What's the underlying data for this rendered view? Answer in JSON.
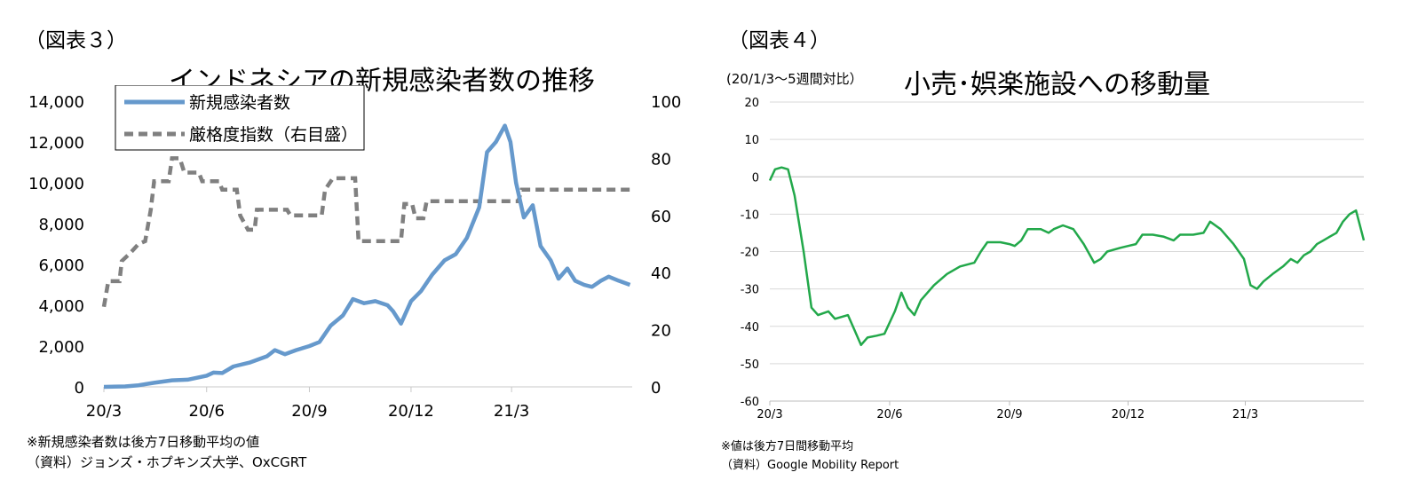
{
  "figure3": {
    "label": "（図表３）",
    "title": "インドネシアの新規感染者数の推移",
    "notes": [
      "※新規感染者数は後方7日移動平均の値",
      "（資料）ジョンズ・ホプキンズ大学、OxCGRT"
    ],
    "chart_data": {
      "type": "line",
      "title": "インドネシアの新規感染者数の推移",
      "x_ticks": [
        "20/3",
        "20/6",
        "20/9",
        "20/12",
        "21/3"
      ],
      "x_range": [
        "2020-03-01",
        "2021-06-17"
      ],
      "y_left": {
        "range": [
          0,
          14000
        ],
        "ticks": [
          "0",
          "2,000",
          "4,000",
          "6,000",
          "8,000",
          "10,000",
          "12,000",
          "14,000"
        ]
      },
      "y_right": {
        "range": [
          0,
          100
        ],
        "ticks": [
          "0",
          "20",
          "40",
          "60",
          "80",
          "100"
        ]
      },
      "legend_position": "top-left",
      "grid": false,
      "series": [
        {
          "name": "新規感染者数",
          "axis": "left",
          "color": "#6699cc",
          "style": "solid",
          "points": [
            [
              "2020-03-01",
              0
            ],
            [
              "2020-03-20",
              20
            ],
            [
              "2020-04-01",
              80
            ],
            [
              "2020-04-15",
              200
            ],
            [
              "2020-05-01",
              320
            ],
            [
              "2020-05-15",
              350
            ],
            [
              "2020-06-01",
              550
            ],
            [
              "2020-06-07",
              700
            ],
            [
              "2020-06-15",
              680
            ],
            [
              "2020-06-25",
              1000
            ],
            [
              "2020-07-10",
              1200
            ],
            [
              "2020-07-25",
              1500
            ],
            [
              "2020-08-01",
              1800
            ],
            [
              "2020-08-10",
              1600
            ],
            [
              "2020-08-20",
              1800
            ],
            [
              "2020-09-01",
              2000
            ],
            [
              "2020-09-10",
              2200
            ],
            [
              "2020-09-20",
              3000
            ],
            [
              "2020-10-01",
              3500
            ],
            [
              "2020-10-10",
              4300
            ],
            [
              "2020-10-20",
              4100
            ],
            [
              "2020-10-30",
              4200
            ],
            [
              "2020-11-10",
              4000
            ],
            [
              "2020-11-15",
              3700
            ],
            [
              "2020-11-22",
              3100
            ],
            [
              "2020-12-01",
              4200
            ],
            [
              "2020-12-10",
              4700
            ],
            [
              "2020-12-20",
              5500
            ],
            [
              "2020-12-31",
              6200
            ],
            [
              "2021-01-10",
              6500
            ],
            [
              "2021-01-20",
              7300
            ],
            [
              "2021-01-31",
              8800
            ],
            [
              "2021-02-07",
              11500
            ],
            [
              "2021-02-15",
              12000
            ],
            [
              "2021-02-23",
              12800
            ],
            [
              "2021-02-28",
              12000
            ],
            [
              "2021-03-05",
              10000
            ],
            [
              "2021-03-12",
              8300
            ],
            [
              "2021-03-20",
              8900
            ],
            [
              "2021-03-27",
              6900
            ],
            [
              "2021-04-05",
              6200
            ],
            [
              "2021-04-12",
              5300
            ],
            [
              "2021-04-20",
              5800
            ],
            [
              "2021-04-27",
              5200
            ],
            [
              "2021-05-05",
              5000
            ],
            [
              "2021-05-12",
              4900
            ],
            [
              "2021-05-20",
              5200
            ],
            [
              "2021-05-27",
              5400
            ],
            [
              "2021-06-05",
              5200
            ],
            [
              "2021-06-15",
              5000
            ]
          ]
        },
        {
          "name": "厳格度指数（右目盛）",
          "axis": "right",
          "color": "#808080",
          "style": "dashed",
          "points": [
            [
              "2020-03-01",
              28
            ],
            [
              "2020-03-05",
              37
            ],
            [
              "2020-03-15",
              37
            ],
            [
              "2020-03-17",
              44
            ],
            [
              "2020-03-25",
              47
            ],
            [
              "2020-04-01",
              50
            ],
            [
              "2020-04-07",
              51
            ],
            [
              "2020-04-12",
              62
            ],
            [
              "2020-04-15",
              72
            ],
            [
              "2020-04-28",
              72
            ],
            [
              "2020-05-01",
              80
            ],
            [
              "2020-05-08",
              80
            ],
            [
              "2020-05-12",
              75
            ],
            [
              "2020-05-25",
              75
            ],
            [
              "2020-05-28",
              72
            ],
            [
              "2020-06-12",
              72
            ],
            [
              "2020-06-15",
              69
            ],
            [
              "2020-06-28",
              69
            ],
            [
              "2020-07-01",
              60
            ],
            [
              "2020-07-08",
              55
            ],
            [
              "2020-07-14",
              55
            ],
            [
              "2020-07-16",
              62
            ],
            [
              "2020-08-12",
              62
            ],
            [
              "2020-08-15",
              60
            ],
            [
              "2020-09-12",
              60
            ],
            [
              "2020-09-15",
              69
            ],
            [
              "2020-09-22",
              73
            ],
            [
              "2020-10-12",
              73
            ],
            [
              "2020-10-15",
              51
            ],
            [
              "2020-11-22",
              51
            ],
            [
              "2020-11-25",
              64
            ],
            [
              "2020-12-02",
              64
            ],
            [
              "2020-12-05",
              59
            ],
            [
              "2020-12-12",
              59
            ],
            [
              "2020-12-15",
              65
            ],
            [
              "2021-03-07",
              65
            ],
            [
              "2021-03-10",
              69
            ],
            [
              "2021-06-15",
              69
            ]
          ]
        }
      ]
    }
  },
  "figure4": {
    "label": "（図表４）",
    "title": "小売･娯楽施設への移動量",
    "unit_note": "(20/1/3～5週間対比）",
    "notes": [
      "※値は後方7日間移動平均",
      "（資料）Google Mobility Report"
    ],
    "chart_data": {
      "type": "line",
      "title": "小売･娯楽施設への移動量",
      "x_ticks": [
        "20/3",
        "20/6",
        "20/9",
        "20/12",
        "21/3"
      ],
      "x_range": [
        "2020-03-01",
        "2021-05-31"
      ],
      "y": {
        "range": [
          -60,
          20
        ],
        "ticks": [
          "20",
          "10",
          "0",
          "-10",
          "-20",
          "-30",
          "-40",
          "-50",
          "-60"
        ]
      },
      "grid": true,
      "series": [
        {
          "color": "#22a84a",
          "points": [
            [
              "2020-03-01",
              -1
            ],
            [
              "2020-03-05",
              2
            ],
            [
              "2020-03-10",
              2.5
            ],
            [
              "2020-03-15",
              2
            ],
            [
              "2020-03-20",
              -5
            ],
            [
              "2020-03-27",
              -20
            ],
            [
              "2020-04-02",
              -35
            ],
            [
              "2020-04-07",
              -37
            ],
            [
              "2020-04-15",
              -36
            ],
            [
              "2020-04-20",
              -38
            ],
            [
              "2020-04-30",
              -37
            ],
            [
              "2020-05-05",
              -41
            ],
            [
              "2020-05-10",
              -45
            ],
            [
              "2020-05-15",
              -43
            ],
            [
              "2020-05-22",
              -42.5
            ],
            [
              "2020-05-28",
              -42
            ],
            [
              "2020-06-05",
              -36
            ],
            [
              "2020-06-10",
              -31
            ],
            [
              "2020-06-15",
              -35
            ],
            [
              "2020-06-20",
              -37
            ],
            [
              "2020-06-25",
              -33
            ],
            [
              "2020-07-05",
              -29
            ],
            [
              "2020-07-15",
              -26
            ],
            [
              "2020-07-25",
              -24
            ],
            [
              "2020-08-05",
              -23
            ],
            [
              "2020-08-10",
              -20
            ],
            [
              "2020-08-15",
              -17.5
            ],
            [
              "2020-08-25",
              -17.5
            ],
            [
              "2020-09-01",
              -18
            ],
            [
              "2020-09-05",
              -18.5
            ],
            [
              "2020-09-10",
              -17
            ],
            [
              "2020-09-15",
              -14
            ],
            [
              "2020-09-25",
              -14
            ],
            [
              "2020-10-01",
              -15
            ],
            [
              "2020-10-05",
              -14
            ],
            [
              "2020-10-12",
              -13
            ],
            [
              "2020-10-20",
              -14
            ],
            [
              "2020-10-28",
              -18
            ],
            [
              "2020-11-05",
              -23
            ],
            [
              "2020-11-10",
              -22
            ],
            [
              "2020-11-15",
              -20
            ],
            [
              "2020-11-25",
              -19
            ],
            [
              "2020-12-01",
              -18.5
            ],
            [
              "2020-12-07",
              -18
            ],
            [
              "2020-12-12",
              -15.5
            ],
            [
              "2020-12-20",
              -15.5
            ],
            [
              "2020-12-28",
              -16
            ],
            [
              "2021-01-05",
              -17
            ],
            [
              "2021-01-10",
              -15.5
            ],
            [
              "2021-01-20",
              -15.5
            ],
            [
              "2021-01-28",
              -15
            ],
            [
              "2021-02-02",
              -12
            ],
            [
              "2021-02-10",
              -14
            ],
            [
              "2021-02-20",
              -18
            ],
            [
              "2021-02-28",
              -22
            ],
            [
              "2021-03-05",
              -29
            ],
            [
              "2021-03-10",
              -30
            ],
            [
              "2021-03-15",
              -28
            ],
            [
              "2021-03-22",
              -26
            ],
            [
              "2021-03-30",
              -24
            ],
            [
              "2021-04-05",
              -22
            ],
            [
              "2021-04-10",
              -23
            ],
            [
              "2021-04-15",
              -21
            ],
            [
              "2021-04-20",
              -20
            ],
            [
              "2021-04-25",
              -18
            ],
            [
              "2021-04-30",
              -17
            ],
            [
              "2021-05-05",
              -16
            ],
            [
              "2021-05-10",
              -15
            ],
            [
              "2021-05-15",
              -12
            ],
            [
              "2021-05-20",
              -10
            ],
            [
              "2021-05-25",
              -9
            ],
            [
              "2021-05-31",
              -17
            ]
          ]
        }
      ]
    }
  }
}
